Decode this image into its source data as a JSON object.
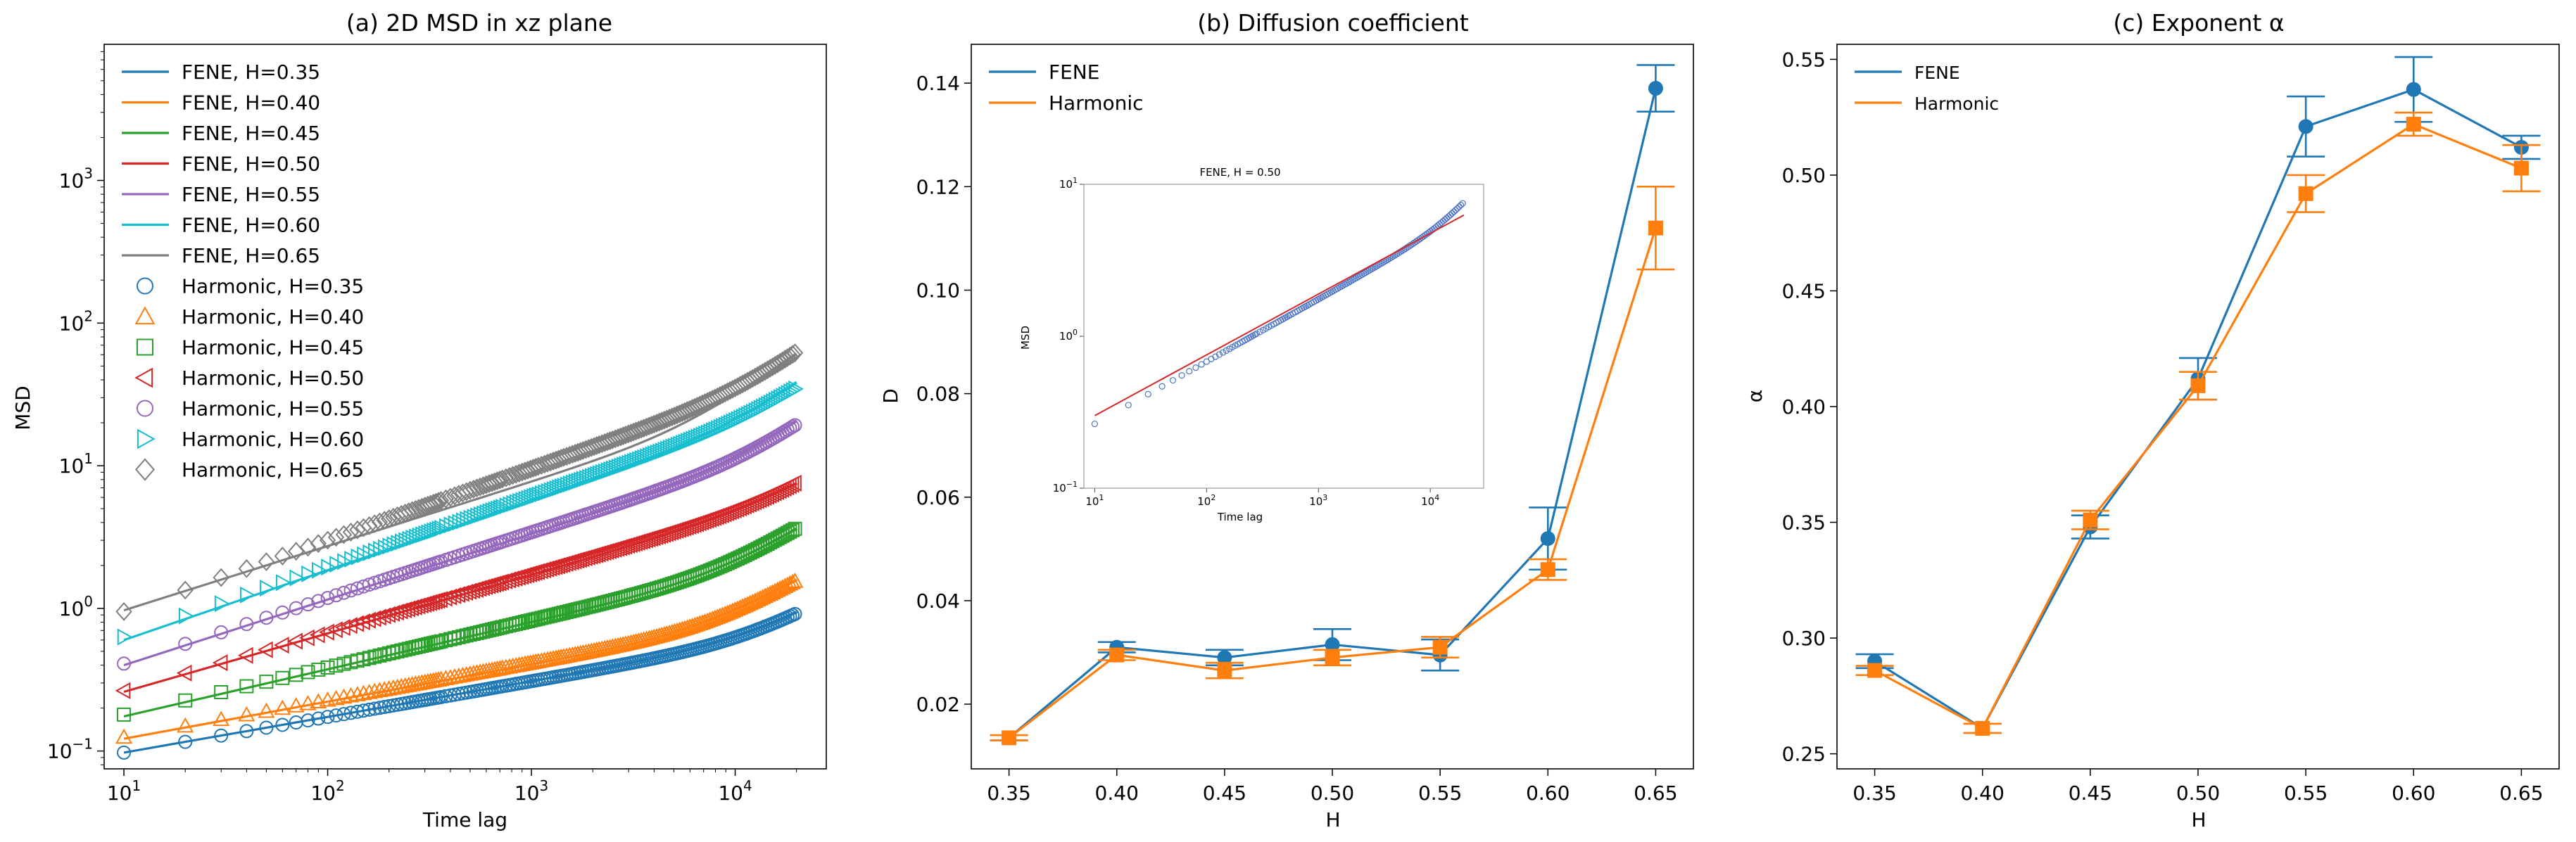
{
  "chart_data": [
    {
      "type": "line",
      "title": "(a) 2D MSD in xz plane",
      "xlabel": "Time lag",
      "ylabel": "MSD",
      "xscale": "log",
      "yscale": "log",
      "xlim": [
        8,
        28000
      ],
      "ylim": [
        0.075,
        9000
      ],
      "x_ticks": [
        {
          "v": 10,
          "b": "10",
          "e": "1"
        },
        {
          "v": 100,
          "b": "10",
          "e": "2"
        },
        {
          "v": 1000,
          "b": "10",
          "e": "3"
        },
        {
          "v": 10000,
          "b": "10",
          "e": "4"
        }
      ],
      "y_ticks": [
        {
          "v": 0.1,
          "b": "10",
          "e": "−1"
        },
        {
          "v": 1,
          "b": "10",
          "e": "0"
        },
        {
          "v": 10,
          "b": "10",
          "e": "1"
        },
        {
          "v": 100,
          "b": "10",
          "e": "2"
        },
        {
          "v": 1000,
          "b": "10",
          "e": "3"
        }
      ],
      "legend_position": "upper-left",
      "fene_series": [
        {
          "name": "FENE, H=0.35",
          "color": "#1f77b4",
          "a": 0.0975,
          "alpha": 0.25,
          "b": 0.00043,
          "beta": 0.77
        },
        {
          "name": "FENE, H=0.40",
          "color": "#ff7f0e",
          "a": 0.122,
          "alpha": 0.26,
          "b": 0.00056,
          "beta": 0.8
        },
        {
          "name": "FENE, H=0.45",
          "color": "#2ca02c",
          "a": 0.175,
          "alpha": 0.33,
          "b": 0.0007,
          "beta": 0.86
        },
        {
          "name": "FENE, H=0.50",
          "color": "#d62728",
          "a": 0.26,
          "alpha": 0.41,
          "b": 0.0011,
          "beta": 0.88
        },
        {
          "name": "FENE, H=0.55",
          "color": "#9467bd",
          "a": 0.4,
          "alpha": 0.46,
          "b": 0.0012,
          "beta": 0.98
        },
        {
          "name": "FENE, H=0.60",
          "color": "#17becf",
          "a": 0.6,
          "alpha": 0.49,
          "b": 0.0015,
          "beta": 1.02
        },
        {
          "name": "FENE, H=0.65",
          "color": "#7f7f7f",
          "a": 0.97,
          "alpha": 0.45,
          "b": 0.003,
          "beta": 1.0
        }
      ],
      "harmonic_series": [
        {
          "name": "Harmonic, H=0.35",
          "color": "#1f77b4",
          "marker": "circle",
          "a": 0.0975,
          "alpha": 0.25,
          "b": 0.00038,
          "beta": 0.78
        },
        {
          "name": "Harmonic, H=0.40",
          "color": "#ff7f0e",
          "marker": "triangle-up",
          "a": 0.125,
          "alpha": 0.26,
          "b": 0.0005,
          "beta": 0.81
        },
        {
          "name": "Harmonic, H=0.45",
          "color": "#2ca02c",
          "marker": "square",
          "a": 0.18,
          "alpha": 0.33,
          "b": 0.00058,
          "beta": 0.88
        },
        {
          "name": "Harmonic, H=0.50",
          "color": "#d62728",
          "marker": "triangle-left",
          "a": 0.265,
          "alpha": 0.41,
          "b": 0.00075,
          "beta": 0.92
        },
        {
          "name": "Harmonic, H=0.55",
          "color": "#9467bd",
          "marker": "circle",
          "a": 0.41,
          "alpha": 0.46,
          "b": 0.00075,
          "beta": 1.02
        },
        {
          "name": "Harmonic, H=0.60",
          "color": "#17becf",
          "marker": "triangle-right",
          "a": 0.63,
          "alpha": 0.49,
          "b": 0.0016,
          "beta": 1.0
        },
        {
          "name": "Harmonic, H=0.65",
          "color": "#7f7f7f",
          "marker": "diamond",
          "a": 0.95,
          "alpha": 0.5,
          "b": 0.0022,
          "beta": 1.03
        }
      ]
    },
    {
      "type": "line",
      "title": "(b) Diffusion coefficient",
      "xlabel": "H",
      "ylabel": "D",
      "xlim": [
        0.3325,
        0.6675
      ],
      "ylim": [
        0.0075,
        0.1475
      ],
      "x_ticks": [
        "0.35",
        "0.40",
        "0.45",
        "0.50",
        "0.55",
        "0.60",
        "0.65"
      ],
      "y_ticks": [
        "0.02",
        "0.04",
        "0.06",
        "0.08",
        "0.10",
        "0.12",
        "0.14"
      ],
      "legend_position": "upper-left",
      "x": [
        0.35,
        0.4,
        0.45,
        0.5,
        0.55,
        0.6,
        0.65
      ],
      "series": [
        {
          "name": "FENE",
          "color": "#1f77b4",
          "marker": "circle",
          "values": [
            0.0135,
            0.031,
            0.029,
            0.0315,
            0.0295,
            0.052,
            0.139
          ],
          "errors": [
            0.0005,
            0.001,
            0.0015,
            0.003,
            0.003,
            0.006,
            0.0045
          ]
        },
        {
          "name": "Harmonic",
          "color": "#ff7f0e",
          "marker": "square",
          "values": [
            0.0135,
            0.0295,
            0.0265,
            0.029,
            0.031,
            0.046,
            0.112
          ],
          "errors": [
            0.0005,
            0.001,
            0.0015,
            0.0015,
            0.002,
            0.002,
            0.008
          ]
        }
      ],
      "inset": {
        "title": "FENE, H = 0.50",
        "xlabel": "Time lag",
        "ylabel": "MSD",
        "xscale": "log",
        "yscale": "log",
        "xlim": [
          8,
          30000
        ],
        "ylim": [
          0.1,
          10
        ],
        "x_ticks": [
          {
            "v": 10,
            "b": "10",
            "e": "1"
          },
          {
            "v": 100,
            "b": "10",
            "e": "2"
          },
          {
            "v": 1000,
            "b": "10",
            "e": "3"
          },
          {
            "v": 10000,
            "b": "10",
            "e": "4"
          }
        ],
        "y_ticks": [
          {
            "v": 0.1,
            "b": "10",
            "e": "−1"
          },
          {
            "v": 1,
            "b": "10",
            "e": "0"
          },
          {
            "v": 10,
            "b": "10",
            "e": "1"
          }
        ],
        "fit": {
          "color": "#d62728",
          "a": 0.3,
          "alpha": 0.4
        },
        "points": {
          "color": "#4a72c4",
          "a": 0.265,
          "alpha": 0.41,
          "b": 0.00075,
          "beta": 0.92
        }
      }
    },
    {
      "type": "line",
      "title": "(c) Exponent α",
      "xlabel": "H",
      "ylabel": "α",
      "xlim": [
        0.3325,
        0.6675
      ],
      "ylim": [
        0.2435,
        0.5565
      ],
      "x_ticks": [
        "0.35",
        "0.40",
        "0.45",
        "0.50",
        "0.55",
        "0.60",
        "0.65"
      ],
      "y_ticks": [
        "0.25",
        "0.30",
        "0.35",
        "0.40",
        "0.45",
        "0.50",
        "0.55"
      ],
      "legend_position": "upper-left",
      "x": [
        0.35,
        0.4,
        0.45,
        0.5,
        0.55,
        0.6,
        0.65
      ],
      "series": [
        {
          "name": "FENE",
          "color": "#1f77b4",
          "marker": "circle",
          "values": [
            0.29,
            0.261,
            0.348,
            0.412,
            0.521,
            0.537,
            0.512
          ],
          "errors": [
            0.003,
            0.002,
            0.005,
            0.009,
            0.013,
            0.014,
            0.005
          ]
        },
        {
          "name": "Harmonic",
          "color": "#ff7f0e",
          "marker": "square",
          "values": [
            0.286,
            0.261,
            0.351,
            0.409,
            0.492,
            0.522,
            0.503
          ],
          "errors": [
            0.002,
            0.002,
            0.004,
            0.006,
            0.008,
            0.005,
            0.01
          ]
        }
      ]
    }
  ]
}
